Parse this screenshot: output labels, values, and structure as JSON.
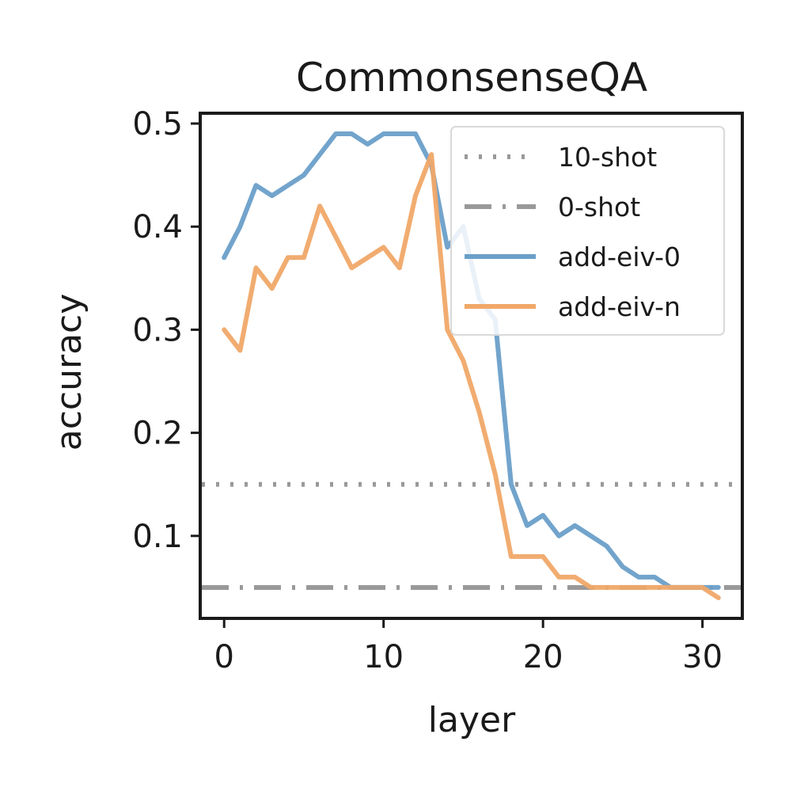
{
  "chart_data": {
    "type": "line",
    "title": "CommonsenseQA",
    "xlabel": "layer",
    "ylabel": "accuracy",
    "xlim": [
      -1.5,
      32.5
    ],
    "ylim": [
      0.02,
      0.51
    ],
    "xticks": [
      0,
      10,
      20,
      30
    ],
    "yticks": [
      0.1,
      0.2,
      0.3,
      0.4,
      0.5
    ],
    "xtick_labels": [
      "0",
      "10",
      "20",
      "30"
    ],
    "ytick_labels": [
      "0.1",
      "0.2",
      "0.3",
      "0.4",
      "0.5"
    ],
    "grid": false,
    "legend_position": "top-right",
    "reference_lines": [
      {
        "name": "10-shot",
        "value": 0.15,
        "style": "dotted",
        "color": "#999999"
      },
      {
        "name": "0-shot",
        "value": 0.05,
        "style": "dashdot",
        "color": "#999999"
      }
    ],
    "x": [
      0,
      1,
      2,
      3,
      4,
      5,
      6,
      7,
      8,
      9,
      10,
      11,
      12,
      13,
      14,
      15,
      16,
      17,
      18,
      19,
      20,
      21,
      22,
      23,
      24,
      25,
      26,
      27,
      28,
      29,
      30,
      31
    ],
    "series": [
      {
        "name": "add-eiv-0",
        "color": "#6a9fc9",
        "values": [
          0.37,
          0.4,
          0.44,
          0.43,
          0.44,
          0.45,
          0.47,
          0.49,
          0.49,
          0.48,
          0.49,
          0.49,
          0.49,
          0.46,
          0.38,
          0.4,
          0.33,
          0.31,
          0.15,
          0.11,
          0.12,
          0.1,
          0.11,
          0.1,
          0.09,
          0.07,
          0.06,
          0.06,
          0.05,
          0.05,
          0.05,
          0.05
        ]
      },
      {
        "name": "add-eiv-n",
        "color": "#f0a868",
        "values": [
          0.3,
          0.28,
          0.36,
          0.34,
          0.37,
          0.37,
          0.42,
          0.39,
          0.36,
          0.37,
          0.38,
          0.36,
          0.43,
          0.47,
          0.3,
          0.27,
          0.22,
          0.16,
          0.08,
          0.08,
          0.08,
          0.06,
          0.06,
          0.05,
          0.05,
          0.05,
          0.05,
          0.05,
          0.05,
          0.05,
          0.05,
          0.04
        ]
      }
    ]
  }
}
